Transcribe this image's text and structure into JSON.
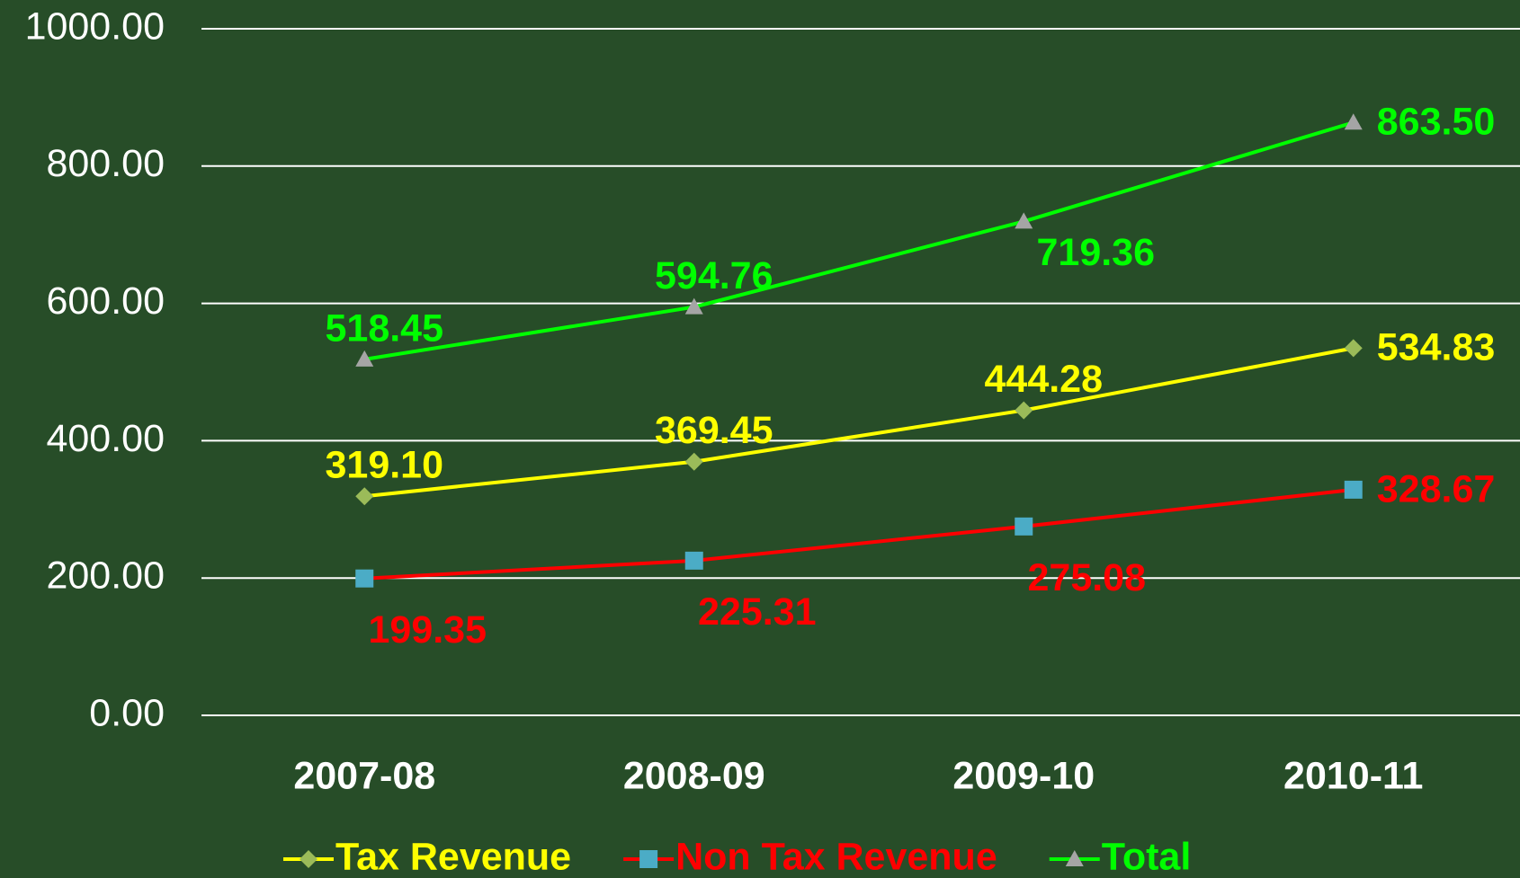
{
  "chart_data": {
    "type": "line",
    "categories": [
      "2007-08",
      "2008-09",
      "2009-10",
      "2010-11"
    ],
    "series": [
      {
        "name": "Tax Revenue",
        "color": "#ffff00",
        "marker": "diamond",
        "marker_color": "#9bbb59",
        "values": [
          319.1,
          369.45,
          444.28,
          534.83
        ],
        "value_labels": [
          "319.10",
          "369.45",
          "444.28",
          "534.83"
        ]
      },
      {
        "name": "Non Tax Revenue",
        "color": "#ff0000",
        "marker": "square",
        "marker_color": "#4bacc6",
        "values": [
          199.35,
          225.31,
          275.08,
          328.67
        ],
        "value_labels": [
          "199.35",
          "225.31",
          "275.08",
          "328.67"
        ]
      },
      {
        "name": "Total",
        "color": "#00ff00",
        "marker": "triangle",
        "marker_color": "#a5a5a5",
        "values": [
          518.45,
          594.76,
          719.36,
          863.5
        ],
        "value_labels": [
          "518.45",
          "594.76",
          "719.36",
          "863.50"
        ]
      }
    ],
    "ylim": [
      0,
      1000
    ],
    "yticks": [
      {
        "value": 0,
        "label": "0.00"
      },
      {
        "value": 200,
        "label": "200.00"
      },
      {
        "value": 400,
        "label": "400.00"
      },
      {
        "value": 600,
        "label": "600.00"
      },
      {
        "value": 800,
        "label": "800.00"
      },
      {
        "value": 1000,
        "label": "1000.00"
      }
    ],
    "grid": true,
    "legend": "bottom"
  }
}
